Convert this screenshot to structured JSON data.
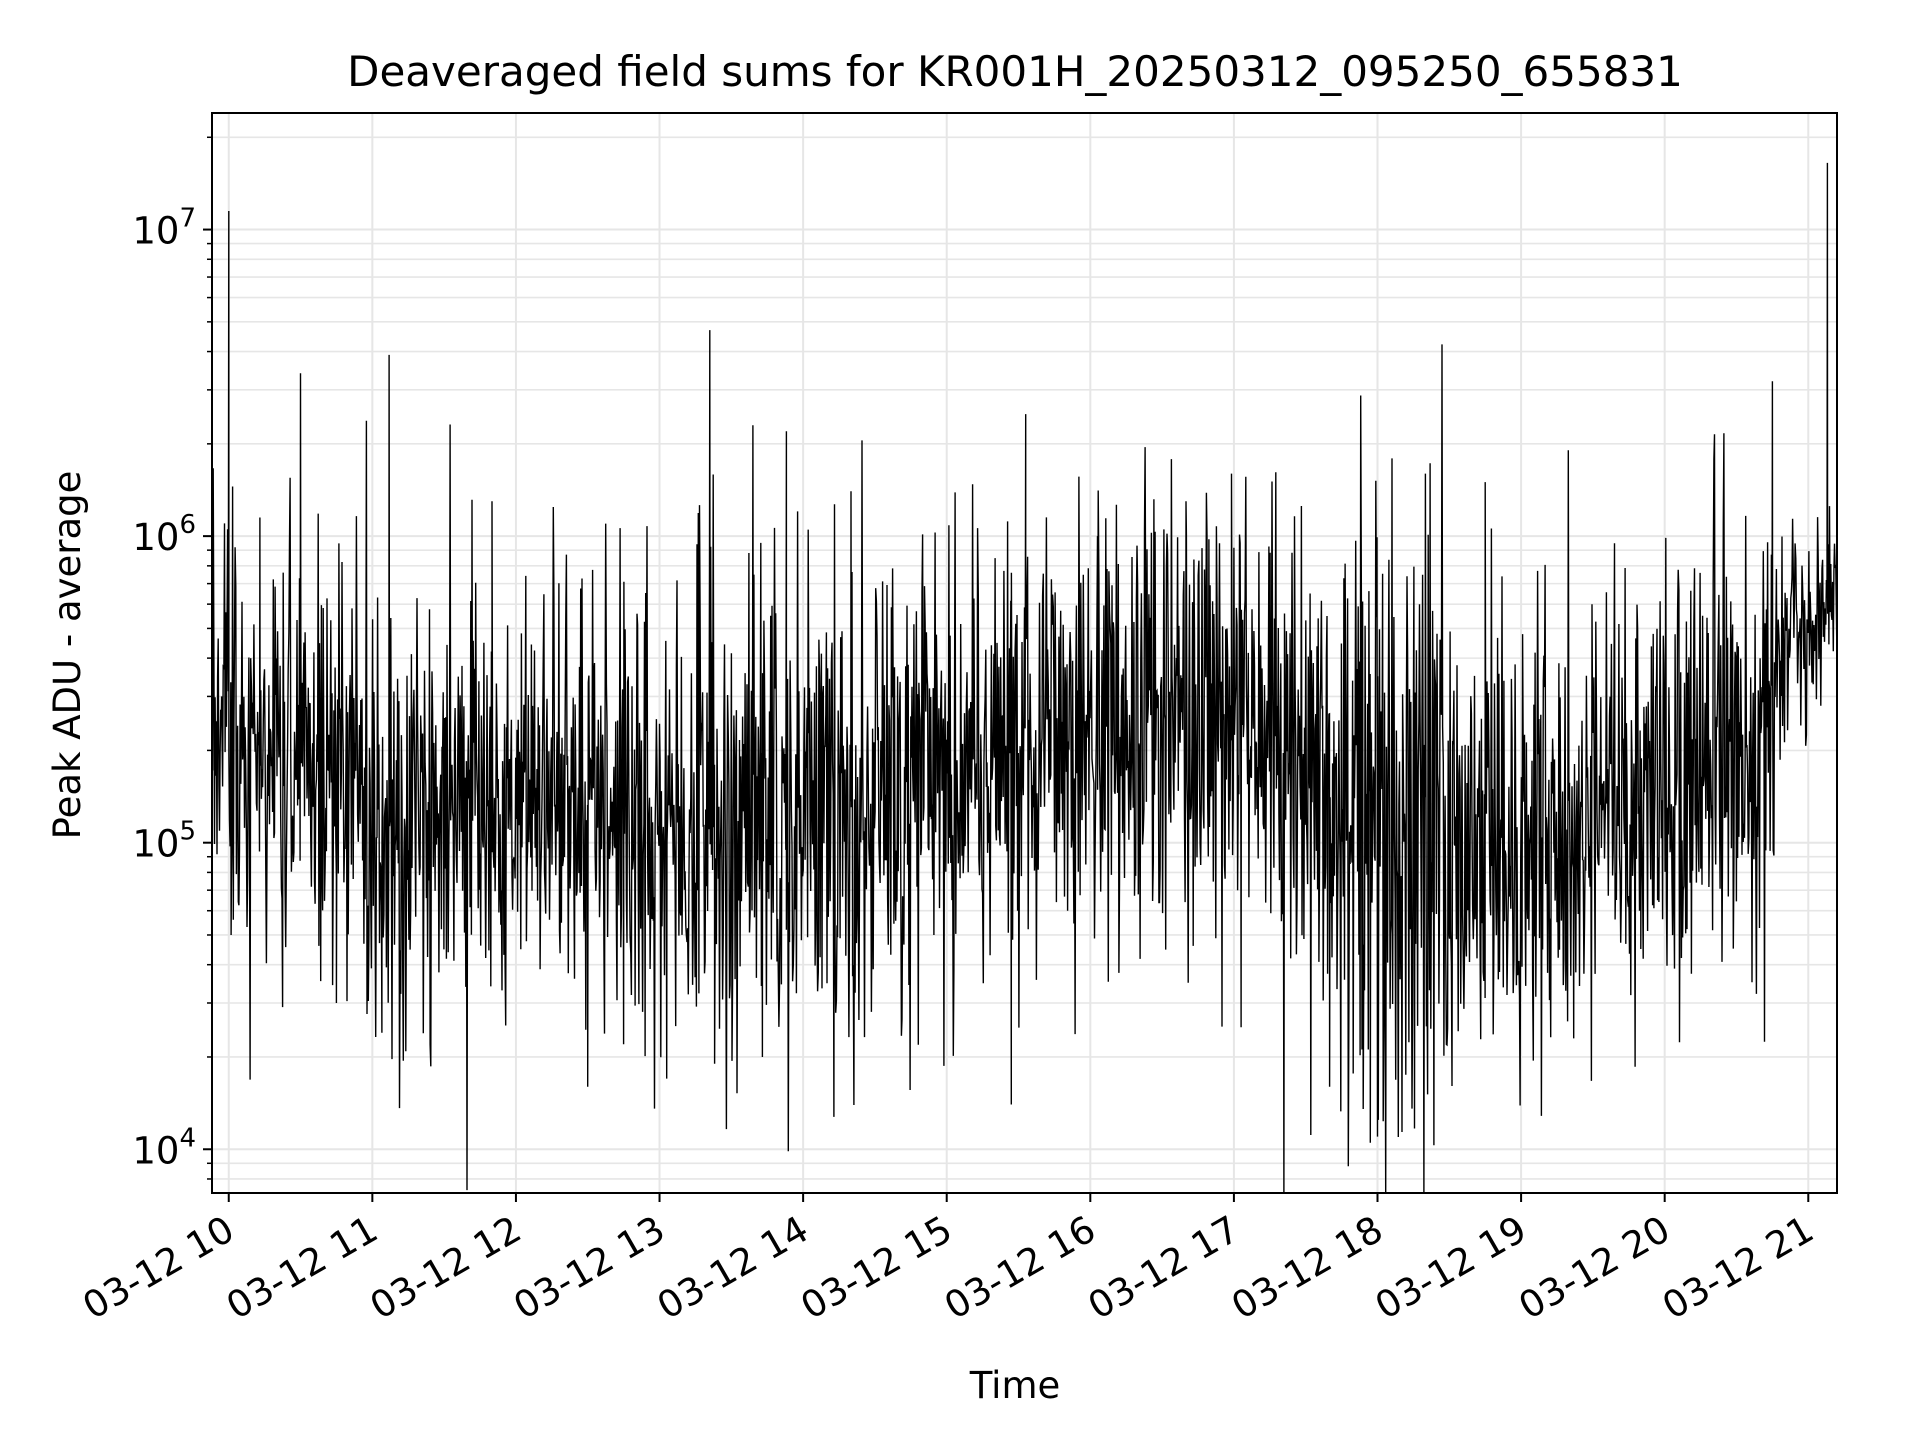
{
  "chart_data": {
    "type": "line",
    "title": "Deaveraged field sums for KR001H_20250312_095250_655831",
    "xlabel": "Time",
    "ylabel": "Peak ADU - average",
    "x_axis": {
      "kind": "date",
      "range": [
        "2025-03-12 09:53",
        "2025-03-12 21:12"
      ],
      "tick_values": [
        "2025-03-12 10:00",
        "2025-03-12 11:00",
        "2025-03-12 12:00",
        "2025-03-12 13:00",
        "2025-03-12 14:00",
        "2025-03-12 15:00",
        "2025-03-12 16:00",
        "2025-03-12 17:00",
        "2025-03-12 18:00",
        "2025-03-12 19:00",
        "2025-03-12 20:00",
        "2025-03-12 21:00"
      ],
      "tick_labels": [
        "03-12 10",
        "03-12 11",
        "03-12 12",
        "03-12 13",
        "03-12 14",
        "03-12 15",
        "03-12 16",
        "03-12 17",
        "03-12 18",
        "03-12 19",
        "03-12 20",
        "03-12 21"
      ]
    },
    "y_axis": {
      "scale": "log",
      "range": [
        7200,
        24000000
      ],
      "tick_values": [
        10000,
        100000,
        1000000,
        10000000
      ],
      "tick_labels": [
        {
          "base": "10",
          "exp": "4"
        },
        {
          "base": "10",
          "exp": "5"
        },
        {
          "base": "10",
          "exp": "6"
        },
        {
          "base": "10",
          "exp": "7"
        }
      ]
    },
    "grid": true,
    "legend": "none",
    "series_color": "#000000",
    "grid_color": "#e6e6e6",
    "series": [
      {
        "points": [
          [
            "2025-03-12 09:53",
            200000
          ],
          [
            "2025-03-12 09:57",
            300000
          ],
          [
            "2025-03-12 10:00",
            11500000
          ],
          [
            "2025-03-12 10:01",
            50000
          ],
          [
            "2025-03-12 10:13",
            1150000
          ],
          [
            "2025-03-12 10:30",
            3400000
          ],
          [
            "2025-03-12 10:45",
            30000
          ],
          [
            "2025-03-12 11:04",
            24000
          ],
          [
            "2025-03-12 11:07",
            3900000
          ],
          [
            "2025-03-12 11:50",
            1300000
          ],
          [
            "2025-03-12 12:30",
            16000
          ],
          [
            "2025-03-12 12:45",
            22000
          ],
          [
            "2025-03-12 13:03",
            17000
          ],
          [
            "2025-03-12 13:21",
            4700000
          ],
          [
            "2025-03-12 13:23",
            19000
          ],
          [
            "2025-03-12 13:39",
            2300000
          ],
          [
            "2025-03-12 13:43",
            20000
          ],
          [
            "2025-03-12 13:53",
            2200000
          ],
          [
            "2025-03-12 14:20",
            1400000
          ],
          [
            "2025-03-12 15:27",
            14000
          ],
          [
            "2025-03-12 15:33",
            2500000
          ],
          [
            "2025-03-12 16:03",
            1000000
          ],
          [
            "2025-03-12 16:40",
            1300000
          ],
          [
            "2025-03-12 16:59",
            1600000
          ],
          [
            "2025-03-12 17:03",
            25000
          ],
          [
            "2025-03-12 17:40",
            16000
          ],
          [
            "2025-03-12 17:57",
            10500
          ],
          [
            "2025-03-12 18:00",
            11000
          ],
          [
            "2025-03-12 18:20",
            1600000
          ],
          [
            "2025-03-12 18:45",
            1500000
          ],
          [
            "2025-03-12 19:22",
            23000
          ],
          [
            "2025-03-12 19:50",
            45000
          ],
          [
            "2025-03-12 20:45",
            3200000
          ],
          [
            "2025-03-12 21:05",
            500000
          ],
          [
            "2025-03-12 21:08",
            16500000
          ],
          [
            "2025-03-12 21:12",
            600000
          ]
        ]
      }
    ]
  }
}
